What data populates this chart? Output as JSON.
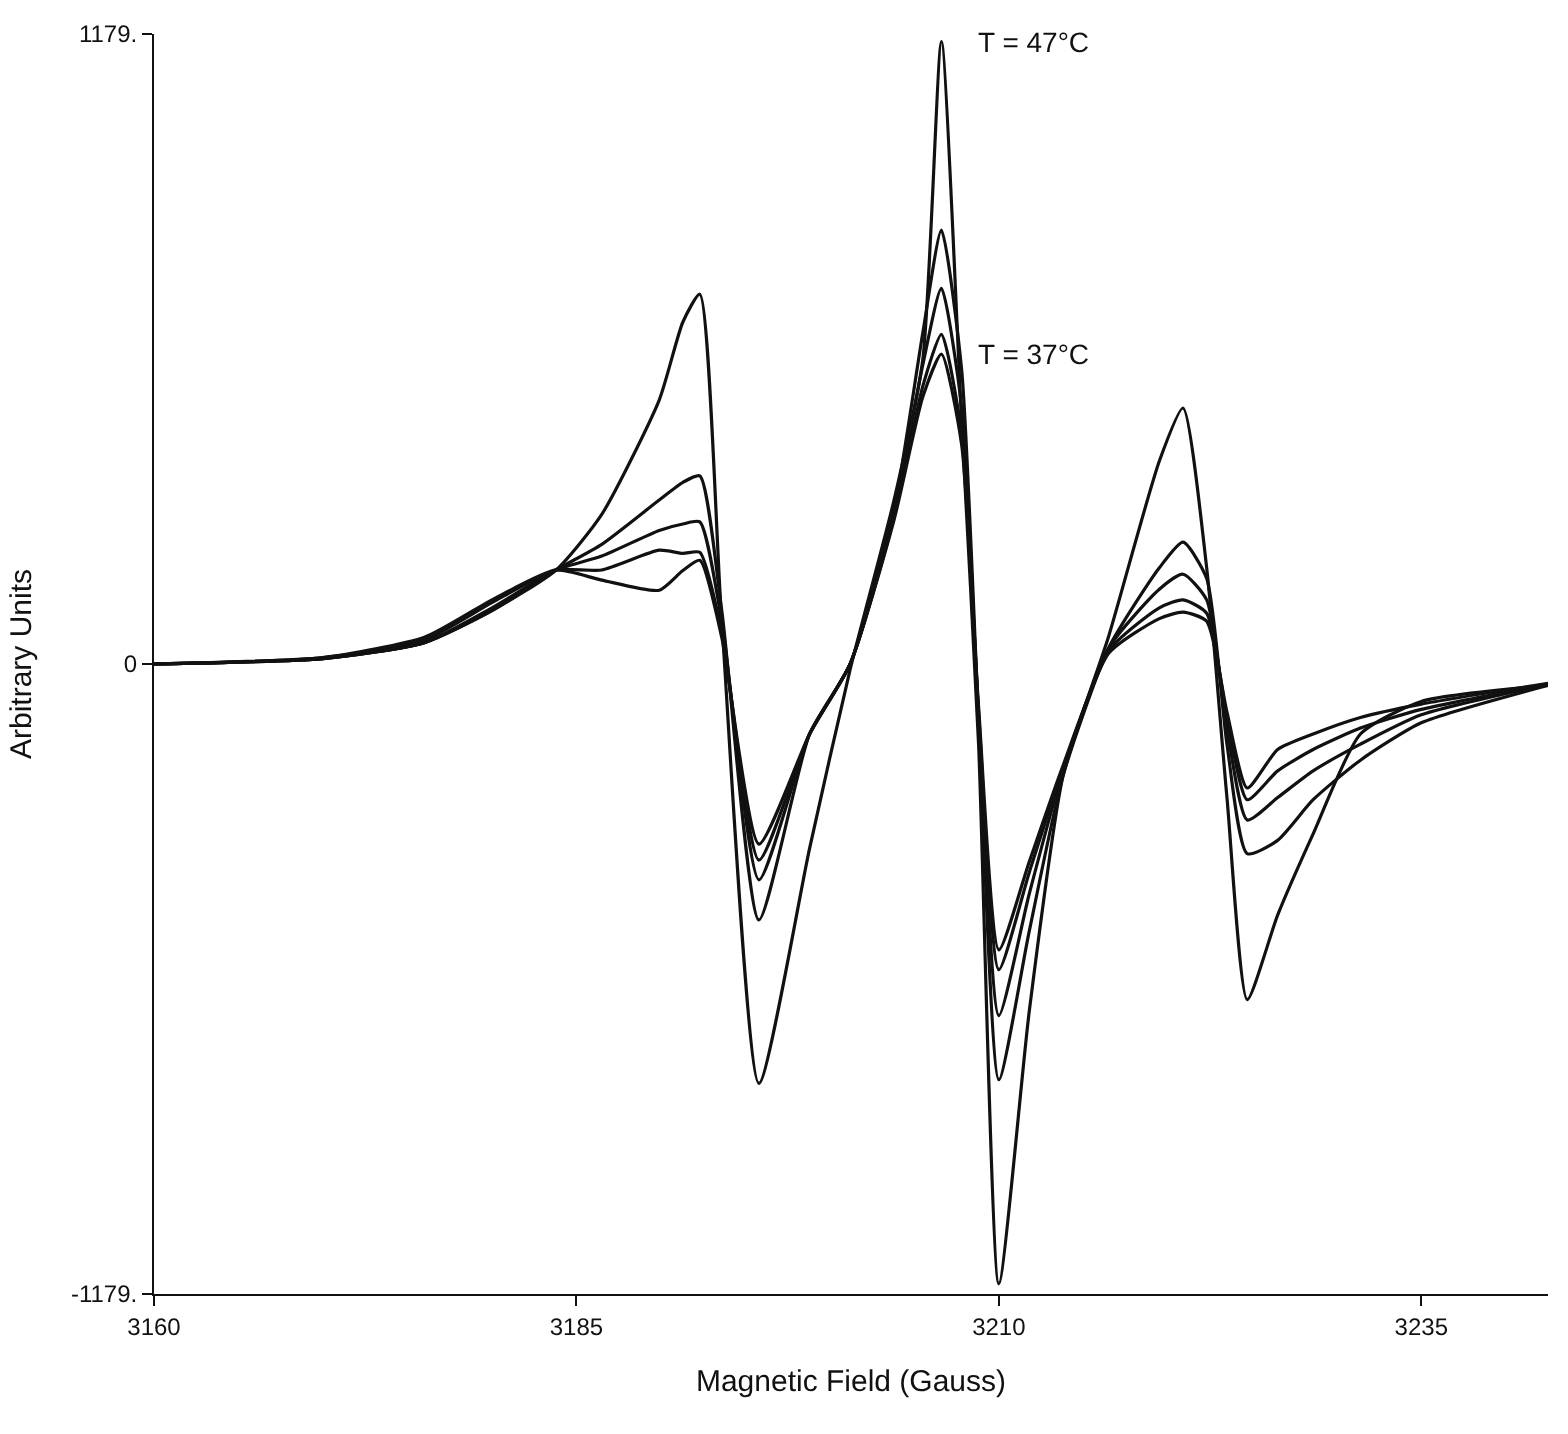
{
  "chart_data": {
    "type": "line",
    "xlabel": "Magnetic Field (Gauss)",
    "ylabel": "Arbitrary Units",
    "x": [
      3160,
      3170,
      3176,
      3180,
      3183.8,
      3186.5,
      3189.9,
      3191.3,
      3192.3,
      3193.6,
      3195.8,
      3198.8,
      3201.2,
      3203.8,
      3205.5,
      3206.6,
      3207.8,
      3208.8,
      3210.0,
      3211.8,
      3213.8,
      3216.5,
      3219.5,
      3220.9,
      3222.3,
      3223.5,
      3224.7,
      3226.5,
      3228.6,
      3231.4,
      3235,
      3242.5
    ],
    "series": [
      {
        "color": "#111111",
        "values": [
          0,
          10,
          40,
          100,
          176,
          280,
          494,
          640,
          692,
          80,
          -785,
          -345,
          -10,
          307,
          570,
          1165,
          450,
          -150,
          -1160,
          -650,
          -209,
          52,
          380,
          479,
          180,
          -250,
          -628,
          -470,
          -318,
          -131,
          -70,
          -40
        ]
      },
      {
        "color": "#111111",
        "values": [
          0,
          10,
          40,
          100,
          176,
          224,
          307,
          340,
          352,
          100,
          -479,
          -131,
          0,
          290,
          620,
          812,
          550,
          -100,
          -778,
          -500,
          -209,
          30,
          180,
          228,
          160,
          -150,
          -355,
          -330,
          -254,
          -180,
          -110,
          -40
        ]
      },
      {
        "color": "#111111",
        "values": [
          0,
          10,
          40,
          105,
          176,
          202,
          250,
          262,
          266,
          80,
          -404,
          -131,
          0,
          280,
          560,
          703,
          480,
          -100,
          -658,
          -430,
          -200,
          30,
          140,
          168,
          120,
          -120,
          -292,
          -250,
          -200,
          -150,
          -95,
          -38
        ]
      },
      {
        "color": "#111111",
        "values": [
          0,
          12,
          45,
          115,
          176,
          176,
          213,
          207,
          209,
          60,
          -367,
          -131,
          0,
          275,
          520,
          617,
          430,
          -90,
          -572,
          -390,
          -195,
          25,
          105,
          120,
          95,
          -100,
          -254,
          -200,
          -160,
          -120,
          -85,
          -37
        ]
      },
      {
        "color": "#111111",
        "values": [
          0,
          12,
          50,
          120,
          176,
          157,
          138,
          175,
          194,
          50,
          -337,
          -131,
          0,
          270,
          500,
          580,
          410,
          -80,
          -535,
          -370,
          -190,
          20,
          85,
          97,
          80,
          -90,
          -232,
          -160,
          -131,
          -100,
          -75,
          -36
        ]
      }
    ],
    "annotations": [
      {
        "text": "T = 47°C",
        "x": 3206.6,
        "y": 1165
      },
      {
        "text": "T = 37°C",
        "x": 3206.6,
        "y": 580
      }
    ],
    "xlim": [
      3160,
      3242.5
    ],
    "xticks": [
      3160,
      3185,
      3210,
      3235
    ],
    "ylim": [
      -1179,
      1179
    ],
    "yticks": [
      {
        "value": 1179,
        "label": "1179."
      },
      0,
      {
        "value": -1179,
        "label": "-1179."
      }
    ],
    "marker": "none",
    "line_style": "solid"
  }
}
